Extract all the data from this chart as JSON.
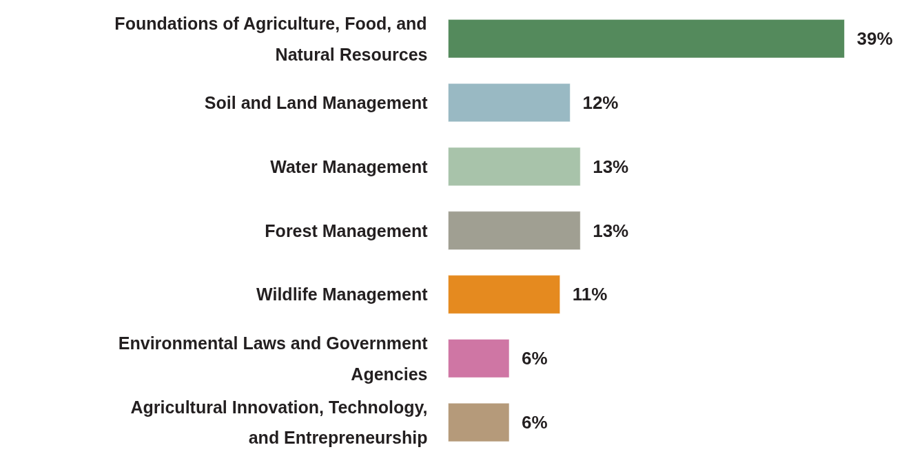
{
  "chart_data": {
    "type": "bar",
    "orientation": "horizontal",
    "categories": [
      "Foundations of Agriculture, Food, and Natural Resources",
      "Soil and Land Management",
      "Water Management",
      "Forest Management",
      "Wildlife Management",
      "Environmental Laws and Government Agencies",
      "Agricultural Innovation, Technology, and Entrepreneurship"
    ],
    "values": [
      39,
      12,
      13,
      13,
      11,
      6,
      6
    ],
    "colors": [
      "#548a5c",
      "#99b9c3",
      "#a8c3aa",
      "#a09f92",
      "#e58a1f",
      "#cf76a4",
      "#b59a7a"
    ],
    "value_labels": [
      "39%",
      "12%",
      "13%",
      "13%",
      "11%",
      "6%",
      "6%"
    ],
    "grid": false
  }
}
